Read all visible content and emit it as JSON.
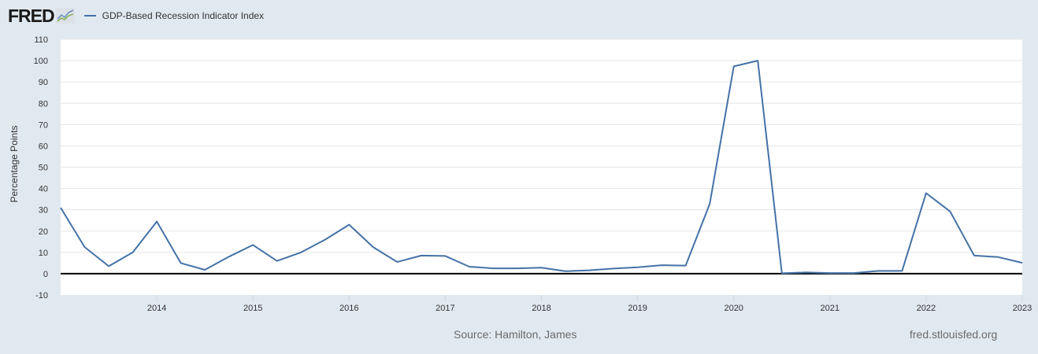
{
  "header": {
    "logo": "FRED",
    "series_label": "GDP-Based Recession Indicator Index",
    "series_color": "#4572a7"
  },
  "footer": {
    "source": "Source: Hamilton, James",
    "site": "fred.stlouisfed.org"
  },
  "chart_data": {
    "type": "line",
    "title": "GDP-Based Recession Indicator Index",
    "xlabel": "",
    "ylabel": "Percentage Points",
    "ylim": [
      -10,
      110
    ],
    "yticks": [
      -10,
      0,
      10,
      20,
      30,
      40,
      50,
      60,
      70,
      80,
      90,
      100,
      110
    ],
    "xticks": [
      "2014",
      "2015",
      "2016",
      "2017",
      "2018",
      "2019",
      "2020",
      "2021",
      "2022",
      "2023"
    ],
    "grid": true,
    "legend_position": "top-left",
    "series": [
      {
        "name": "GDP-Based Recession Indicator Index",
        "color": "#4572a7",
        "x": [
          "2013-01-01",
          "2013-04-01",
          "2013-07-01",
          "2013-10-01",
          "2014-01-01",
          "2014-04-01",
          "2014-07-01",
          "2014-10-01",
          "2015-01-01",
          "2015-04-01",
          "2015-07-01",
          "2015-10-01",
          "2016-01-01",
          "2016-04-01",
          "2016-07-01",
          "2016-10-01",
          "2017-01-01",
          "2017-04-01",
          "2017-07-01",
          "2017-10-01",
          "2018-01-01",
          "2018-04-01",
          "2018-07-01",
          "2018-10-01",
          "2019-01-01",
          "2019-04-01",
          "2019-07-01",
          "2019-10-01",
          "2020-01-01",
          "2020-04-01",
          "2020-07-01",
          "2020-10-01",
          "2021-01-01",
          "2021-04-01",
          "2021-07-01",
          "2021-10-01",
          "2022-01-01",
          "2022-04-01",
          "2022-07-01",
          "2022-10-01",
          "2023-01-01"
        ],
        "values": [
          31.0,
          12.5,
          3.5,
          10.0,
          24.5,
          5.0,
          1.8,
          8.0,
          13.5,
          6.0,
          10.0,
          16.0,
          23.0,
          12.5,
          5.5,
          8.5,
          8.3,
          3.3,
          2.5,
          2.5,
          2.8,
          1.2,
          1.6,
          2.4,
          3.0,
          4.0,
          3.8,
          32.8,
          97.3,
          100.0,
          0.2,
          0.6,
          0.3,
          0.3,
          1.3,
          1.3,
          37.8,
          29.2,
          8.5,
          7.8,
          5.1
        ]
      }
    ]
  }
}
